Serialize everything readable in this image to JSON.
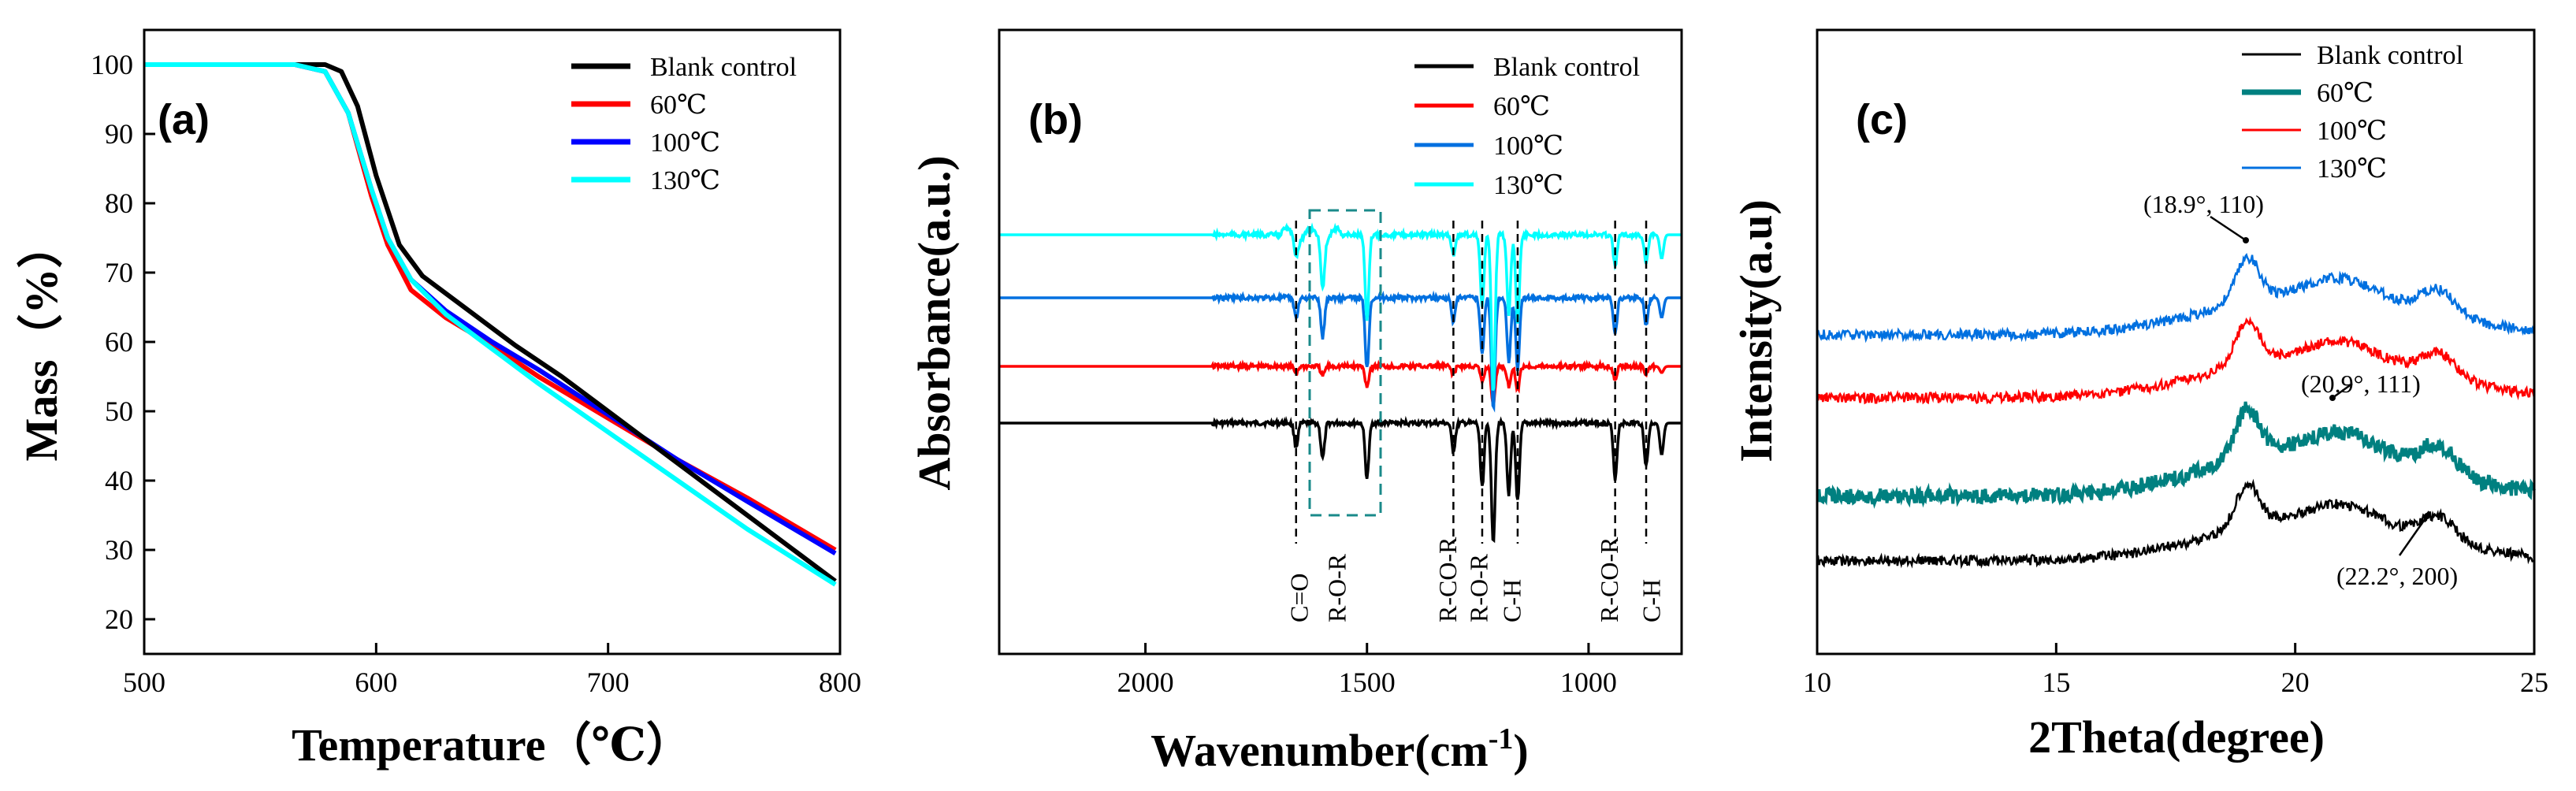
{
  "chart_data": [
    {
      "type": "line",
      "panel_label": "(a)",
      "xlabel": "Temperature（℃）",
      "ylabel": "Mass（%）",
      "xlim": [
        500,
        800
      ],
      "ylim": [
        15,
        105
      ],
      "xticks": [
        "500",
        "600",
        "700",
        "800"
      ],
      "yticks": [
        "20",
        "30",
        "40",
        "50",
        "60",
        "70",
        "80",
        "90",
        "100"
      ],
      "legend_position": "top-right",
      "series": [
        {
          "name": "Blank control",
          "color": "#000000",
          "x": [
            500,
            565,
            578,
            585,
            592,
            600,
            610,
            620,
            640,
            660,
            680,
            700,
            720,
            740,
            760,
            780,
            798
          ],
          "y": [
            100,
            100,
            100,
            99,
            94,
            84,
            74,
            69.5,
            64.5,
            59.5,
            55,
            50,
            45,
            40,
            35,
            30,
            25.5
          ]
        },
        {
          "name": "60℃",
          "color": "#ff0000",
          "x": [
            500,
            565,
            578,
            588,
            598,
            605,
            615,
            630,
            650,
            670,
            700,
            730,
            760,
            798
          ],
          "y": [
            100,
            100,
            99,
            93,
            81,
            74,
            67.5,
            63.5,
            59.5,
            55,
            49,
            43,
            37.5,
            30
          ]
        },
        {
          "name": "100℃",
          "color": "#0000ff",
          "x": [
            500,
            565,
            578,
            588,
            598,
            605,
            615,
            630,
            650,
            670,
            700,
            730,
            760,
            798
          ],
          "y": [
            100,
            100,
            99,
            93,
            82,
            75,
            69,
            64.5,
            60,
            56,
            49.5,
            43,
            37,
            29.5
          ]
        },
        {
          "name": "130℃",
          "color": "#00ffff",
          "x": [
            500,
            565,
            578,
            588,
            598,
            605,
            615,
            630,
            650,
            670,
            700,
            730,
            760,
            798
          ],
          "y": [
            100,
            100,
            99,
            93,
            82,
            75,
            69,
            64,
            59,
            54,
            47,
            40,
            33,
            25
          ]
        }
      ]
    },
    {
      "type": "line",
      "panel_label": "(b)",
      "xlabel": "Wavenumber(cm",
      "xlabel_sup": "-1",
      "xlabel_close": ")",
      "ylabel": "Absorbance(a.u.)",
      "xlim": [
        2330,
        790
      ],
      "xticks": [
        2000,
        1500,
        1000
      ],
      "xtick_labels": [
        "2000",
        "1500",
        "1000"
      ],
      "legend_position": "top-right",
      "series": [
        {
          "name": "Blank control",
          "color": "#000000",
          "baseline_offset": 0
        },
        {
          "name": "60℃",
          "color": "#ff0000",
          "baseline_offset": 1
        },
        {
          "name": "100℃",
          "color": "#0070e0",
          "baseline_offset": 2
        },
        {
          "name": "130℃",
          "color": "#00ffff",
          "baseline_offset": 3
        }
      ],
      "peaks_cm1": [
        1660,
        1600,
        1500,
        1305,
        1240,
        1215,
        1180,
        1160,
        940,
        870,
        835
      ],
      "annotations": [
        {
          "text": "C=O",
          "x": 1655
        },
        {
          "text": "R-O-R",
          "x": 1570
        },
        {
          "text": "R-CO-R",
          "x": 1320
        },
        {
          "text": "R-O-R",
          "x": 1250
        },
        {
          "text": "C-H",
          "x": 1175
        },
        {
          "text": "R-CO-R",
          "x": 955
        },
        {
          "text": "C-H",
          "x": 860
        }
      ]
    },
    {
      "type": "line",
      "panel_label": "(c)",
      "xlabel": "2Theta(degree)",
      "ylabel": "Intensity(a.u)",
      "xlim": [
        10,
        25
      ],
      "xticks": [
        "10",
        "15",
        "20",
        "25"
      ],
      "legend_position": "top-right",
      "series": [
        {
          "name": "Blank control",
          "color": "#000000",
          "baseline_offset": 0
        },
        {
          "name": "60℃",
          "color": "#008080",
          "baseline_offset": 1
        },
        {
          "name": "100℃",
          "color": "#ff0000",
          "baseline_offset": 2
        },
        {
          "name": "130℃",
          "color": "#0070e0",
          "baseline_offset": 3
        }
      ],
      "peaks_deg": [
        18.9,
        20.9,
        22.2
      ],
      "annotations": [
        {
          "text": "(18.9°, 110)",
          "x": 18.9
        },
        {
          "text": "(20.9°, 111)",
          "x": 20.9
        },
        {
          "text": "(22.2°, 200)",
          "x": 22.2
        }
      ]
    }
  ]
}
